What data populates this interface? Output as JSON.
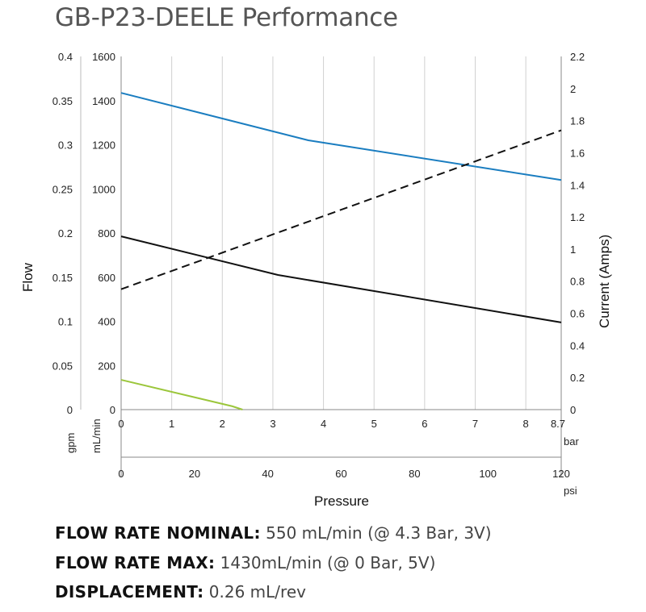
{
  "chart_data": {
    "type": "line",
    "title": "GB-P23-DEELE Performance",
    "xlabel": "Pressure",
    "ylabel_left": "Flow",
    "ylabel_right": "Current (Amps)",
    "x_axes": {
      "bar": {
        "unit": "bar",
        "range": [
          0,
          8.7
        ],
        "ticks": [
          "0",
          "1",
          "2",
          "3",
          "4",
          "5",
          "6",
          "7",
          "8",
          "8.7"
        ]
      },
      "psi": {
        "unit": "psi",
        "range": [
          0,
          120
        ],
        "ticks": [
          "0",
          "20",
          "40",
          "60",
          "80",
          "100",
          "120"
        ]
      }
    },
    "y_axes": {
      "ml_min": {
        "unit": "mL/min",
        "range": [
          0,
          1600
        ],
        "ticks": [
          "0",
          "200",
          "400",
          "600",
          "800",
          "1000",
          "1200",
          "1400",
          "1600"
        ]
      },
      "gpm": {
        "unit": "gpm",
        "range": [
          0,
          0.4
        ],
        "ticks": [
          "0",
          "0.05",
          "0.1",
          "0.15",
          "0.2",
          "0.25",
          "0.3",
          "0.35",
          "0.4"
        ]
      },
      "amps": {
        "unit": "Amps",
        "range": [
          0,
          2.2
        ],
        "ticks": [
          "0",
          "0.2",
          "0.4",
          "0.6",
          "0.8",
          "1",
          "1.2",
          "1.4",
          "1.6",
          "1.8",
          "2",
          "2.2"
        ]
      }
    },
    "grid": {
      "vertical": true,
      "horizontal": false
    },
    "series": [
      {
        "axis": "ml_min",
        "color": "#1a7dc0",
        "dash": false,
        "x": [
          0,
          3.7,
          8.7
        ],
        "y": [
          1435,
          1220,
          1040
        ]
      },
      {
        "axis": "ml_min",
        "color": "#111111",
        "dash": false,
        "x": [
          0,
          3.1,
          8.7
        ],
        "y": [
          785,
          610,
          395
        ]
      },
      {
        "axis": "ml_min",
        "color": "#9bc63b",
        "dash": false,
        "x": [
          0,
          2.2,
          2.4
        ],
        "y": [
          135,
          15,
          0
        ]
      },
      {
        "axis": "amps",
        "color": "#111111",
        "dash": true,
        "x": [
          0,
          8.7
        ],
        "y": [
          0.75,
          1.74
        ]
      }
    ]
  },
  "specs": [
    {
      "label": "FLOW RATE NOMINAL:",
      "value": "550 mL/min (@  4.3 Bar, 3V)"
    },
    {
      "label": "FLOW RATE MAX:",
      "value": "1430mL/min (@ 0 Bar, 5V)"
    },
    {
      "label": "DISPLACEMENT:",
      "value": "0.26 mL/rev"
    }
  ]
}
